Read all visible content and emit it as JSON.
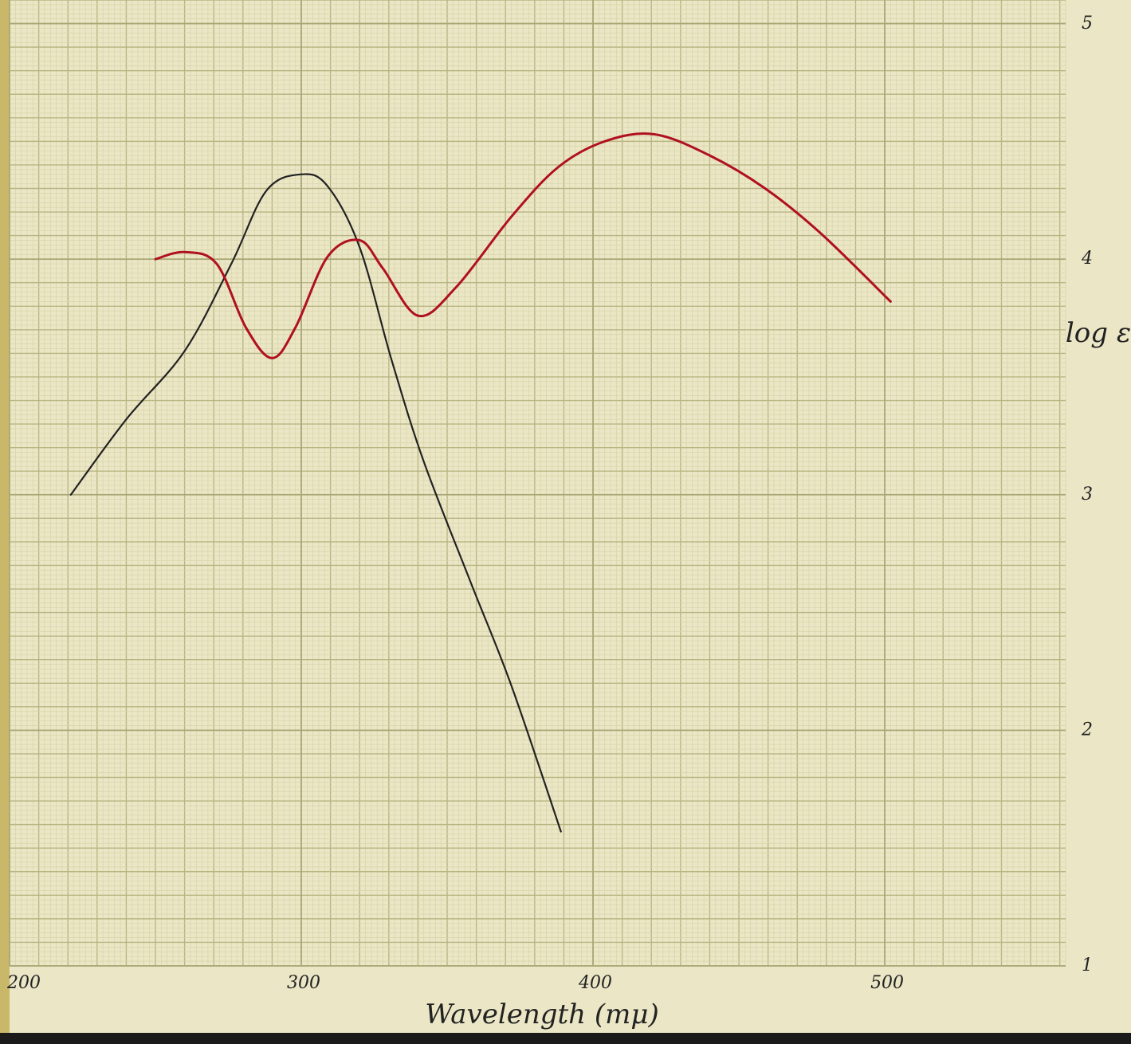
{
  "chart_data": {
    "type": "line",
    "x_label": "Wavelength (mμ)",
    "y_label": "log ε",
    "xlim": [
      200,
      562
    ],
    "ylim": [
      1,
      5.1
    ],
    "xticks": [
      200,
      300,
      400,
      500
    ],
    "yticks": [
      1,
      2,
      3,
      4,
      5
    ],
    "grid": true,
    "series": [
      {
        "color": "#222222",
        "x": [
          221,
          240,
          260,
          276,
          288,
          300,
          309,
          320,
          331,
          342,
          358,
          372,
          389
        ],
        "values": [
          3.0,
          3.32,
          3.61,
          3.98,
          4.29,
          4.36,
          4.31,
          4.05,
          3.57,
          3.14,
          2.63,
          2.19,
          1.57
        ]
      },
      {
        "color": "#b01020",
        "x": [
          250,
          260,
          271,
          281,
          290,
          298,
          309,
          320,
          328,
          340,
          353,
          372,
          388,
          404,
          421,
          440,
          459,
          478,
          502
        ],
        "values": [
          4.0,
          4.03,
          3.98,
          3.71,
          3.58,
          3.71,
          4.01,
          4.08,
          3.96,
          3.76,
          3.88,
          4.18,
          4.39,
          4.5,
          4.53,
          4.44,
          4.3,
          4.11,
          3.82
        ]
      }
    ]
  }
}
